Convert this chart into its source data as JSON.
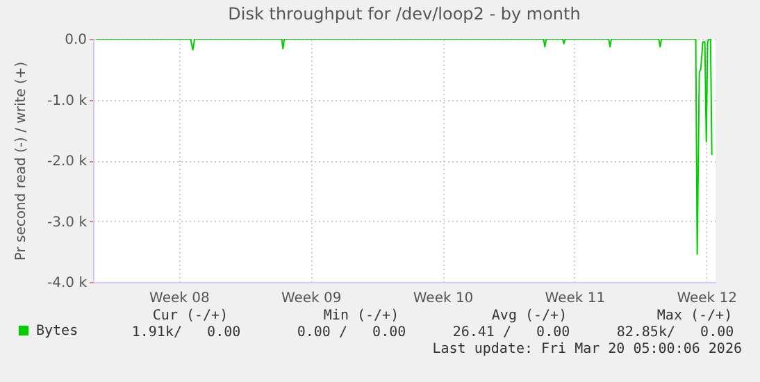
{
  "chart_data": {
    "type": "line",
    "title": "Disk throughput for /dev/loop2 - by month",
    "ylabel": "Pr second read (-) / write (+)",
    "x": [
      "2026-02-15T02:10",
      "2026-02-20T03:07",
      "2026-02-20T05:48",
      "2026-02-20T08:10",
      "2026-02-24T23:02",
      "2026-02-25T00:43",
      "2026-02-25T02:24",
      "2026-03-10T20:30",
      "2026-03-10T22:22",
      "2026-03-11T00:12",
      "2026-03-11T20:53",
      "2026-03-11T22:34",
      "2026-03-12T00:14",
      "2026-03-14T07:41",
      "2026-03-14T09:22",
      "2026-03-14T11:02",
      "2026-03-16T23:31",
      "2026-03-17T01:12",
      "2026-03-17T02:53",
      "2026-03-18T22:34",
      "2026-03-19T00:25",
      "2026-03-19T03:06",
      "2026-03-19T04:56",
      "2026-03-19T07:38",
      "2026-03-19T10:09",
      "2026-03-19T12:00",
      "2026-03-19T13:41",
      "2026-03-19T15:32",
      "2026-03-19T17:23",
      "2026-03-19T19:04"
    ],
    "series": [
      {
        "name": "Bytes",
        "color": "#00cc00",
        "values": [
          0,
          0,
          -180,
          0,
          0,
          -160,
          0,
          0,
          -130,
          0,
          0,
          -80,
          0,
          0,
          -130,
          0,
          0,
          -130,
          0,
          0,
          -3540,
          -550,
          -500,
          -50,
          -50,
          -1690,
          -50,
          0,
          0,
          -1910
        ]
      }
    ],
    "xlim": [
      "2026-02-14T22:48",
      "2026-03-19T23:46"
    ],
    "xticks": [
      {
        "value": "2026-02-19T12:00",
        "label": "Week 08"
      },
      {
        "value": "2026-02-26T12:00",
        "label": "Week 09"
      },
      {
        "value": "2026-03-05T12:00",
        "label": "Week 10"
      },
      {
        "value": "2026-03-12T12:00",
        "label": "Week 11"
      },
      {
        "value": "2026-03-19T12:00",
        "label": "Week 12"
      }
    ],
    "ylim": [
      -4000,
      0
    ],
    "yticks": [
      {
        "value": -4000,
        "label": "-4.0 k"
      },
      {
        "value": -3000,
        "label": "-3.0 k"
      },
      {
        "value": -2000,
        "label": "-2.0 k"
      },
      {
        "value": -1000,
        "label": "-1.0 k"
      },
      {
        "value": 0,
        "label": "0.0"
      }
    ],
    "grid": true,
    "legend": "bottom left",
    "annotations": [
      "Cur (-/+)",
      "Min (-/+)",
      "Avg (-/+)",
      "Max (-/+)",
      "1.91k/   0.00",
      "0.00 /   0.00",
      "26.41 /   0.00",
      "82.85k/   0.00",
      "Last update: Fri Mar 20 05:00:06 2026"
    ]
  }
}
